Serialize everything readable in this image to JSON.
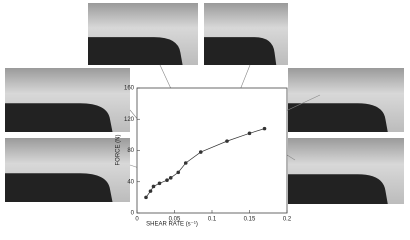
{
  "chart_data": {
    "type": "scatter",
    "xlabel": "SHEAR RATE (s⁻¹)",
    "ylabel": "FORCE (N)",
    "x": [
      0.012,
      0.018,
      0.022,
      0.03,
      0.04,
      0.045,
      0.055,
      0.065,
      0.085,
      0.12,
      0.15,
      0.17
    ],
    "series": [
      {
        "color": "#333333",
        "values": [
          20,
          28,
          34,
          38,
          42,
          45,
          52,
          64,
          78,
          92,
          102,
          108
        ]
      }
    ],
    "xlim": [
      0,
      0.2
    ],
    "xticks": [
      0,
      0.05,
      0.1,
      0.15,
      0.2
    ],
    "ylim": [
      0,
      160
    ],
    "yticks": [
      0,
      40,
      80,
      120,
      160
    ]
  }
}
